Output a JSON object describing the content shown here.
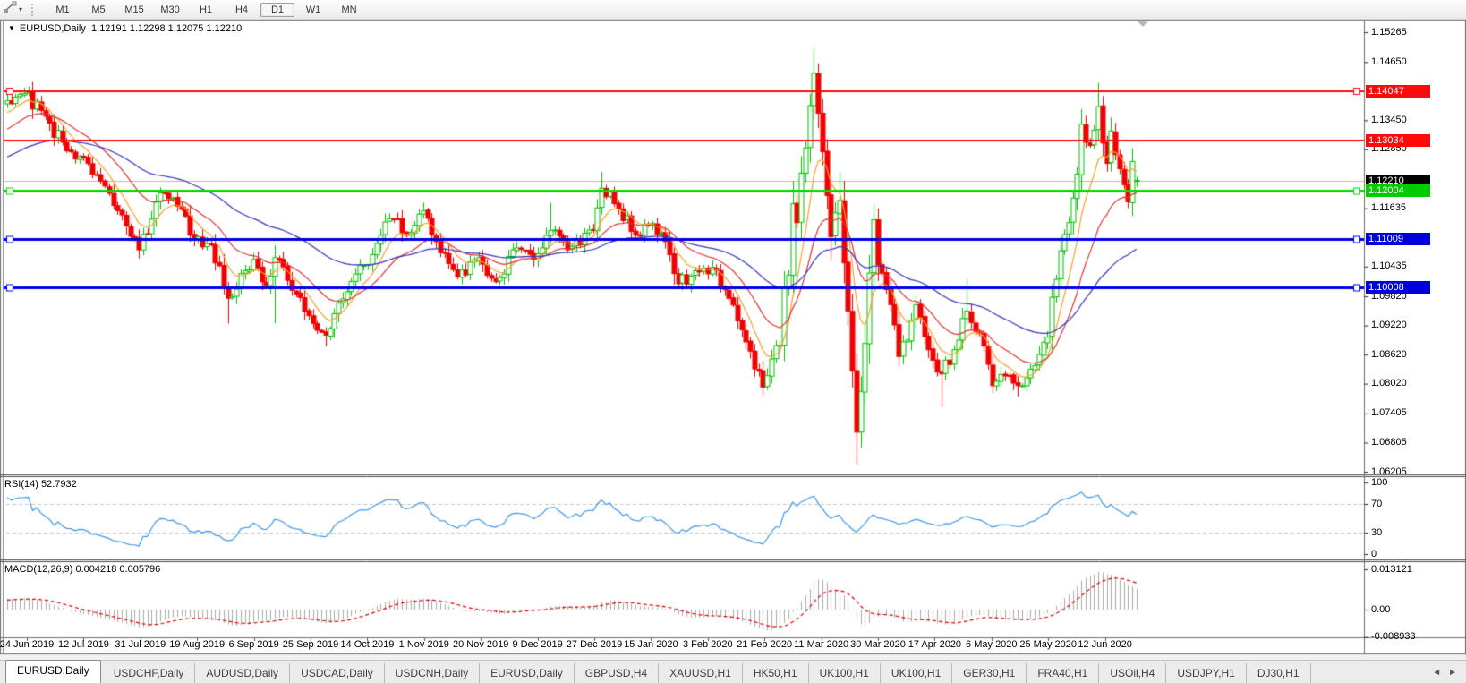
{
  "toolbar": {
    "tool_icon": "line-studies-icon",
    "tool_dropdown_icon": "▾",
    "timeframes": [
      "M1",
      "M5",
      "M15",
      "M30",
      "H1",
      "H4",
      "D1",
      "W1",
      "MN"
    ],
    "active_timeframe": "D1"
  },
  "chart": {
    "menu_icon": "▼",
    "symbol_period": "EURUSD,Daily",
    "ohlc_text": "1.12191 1.12298 1.12075 1.12210"
  },
  "price_scale": {
    "ticks": [
      "1.15265",
      "1.14650",
      "1.13450",
      "1.12850",
      "1.11635",
      "1.10435",
      "1.09820",
      "1.09220",
      "1.08620",
      "1.08020",
      "1.07405",
      "1.06805",
      "1.06205"
    ]
  },
  "levels": [
    {
      "label": "1.14047",
      "value": 1.14047,
      "kind": "resistance-line",
      "color": "#fe0a0a",
      "badge": "#fe0a0a",
      "thickness": 2,
      "handles": true
    },
    {
      "label": "1.13034",
      "value": 1.13034,
      "kind": "resistance-line",
      "color": "#fe0a0a",
      "badge": "#fe0a0a",
      "thickness": 2,
      "handles": false
    },
    {
      "label": "1.12210",
      "value": 1.1221,
      "kind": "current-price-line",
      "color": "#bcbcbc",
      "badge": "#000000",
      "thickness": 1,
      "handles": false
    },
    {
      "label": "1.12004",
      "value": 1.12004,
      "kind": "support-line",
      "color": "#00dc00",
      "badge": "#00cc00",
      "thickness": 3,
      "handles": true
    },
    {
      "label": "1.11009",
      "value": 1.11009,
      "kind": "support-line",
      "color": "#0000e0",
      "badge": "#0000d8",
      "thickness": 3,
      "handles": true
    },
    {
      "label": "1.10008",
      "value": 1.10008,
      "kind": "support-line",
      "color": "#0000e0",
      "badge": "#0000d8",
      "thickness": 3,
      "handles": true
    }
  ],
  "rsi": {
    "label": "RSI(14) 52.7932",
    "period": 14,
    "value": 52.7932,
    "scale": [
      "100",
      "70",
      "30",
      "0"
    ],
    "scale_values": [
      100,
      70,
      30,
      0
    ],
    "upper_band": 70,
    "lower_band": 30,
    "line_color": "#3d97ec"
  },
  "macd": {
    "label": "MACD(12,26,9) 0.004218 0.005796",
    "fast": 12,
    "slow": 26,
    "signal": 9,
    "main_value": 0.004218,
    "signal_value": 0.005796,
    "scale": [
      "0.013121",
      "0.00",
      "-0.008933"
    ],
    "scale_values": [
      0.013121,
      0,
      -0.008933
    ],
    "histogram_color": "#a9a9a9",
    "signal_color": "#e00000"
  },
  "date_axis": [
    "24 Jun 2019",
    "12 Jul 2019",
    "31 Jul 2019",
    "19 Aug 2019",
    "6 Sep 2019",
    "25 Sep 2019",
    "14 Oct 2019",
    "1 Nov 2019",
    "20 Nov 2019",
    "9 Dec 2019",
    "27 Dec 2019",
    "15 Jan 2020",
    "3 Feb 2020",
    "21 Feb 2020",
    "11 Mar 2020",
    "30 Mar 2020",
    "17 Apr 2020",
    "6 May 2020",
    "25 May 2020",
    "12 Jun 2020"
  ],
  "tabs": {
    "items": [
      "EURUSD,Daily",
      "USDCHF,Daily",
      "AUDUSD,Daily",
      "USDCAD,Daily",
      "USDCNH,Daily",
      "EURUSD,Daily",
      "GBPUSD,H4",
      "XAUUSD,H1",
      "HK50,H1",
      "UK100,H1",
      "UK100,H1",
      "GER30,H1",
      "FRA40,H1",
      "USOil,H4",
      "USDJPY,H1",
      "DJ30,H1"
    ],
    "active_index": 0,
    "scroll_left_icon": "◄",
    "scroll_right_icon": "►"
  },
  "chart_data": {
    "type": "candlestick",
    "symbol": "EURUSD",
    "timeframe": "Daily",
    "title": "EURUSD,Daily",
    "x_axis": {
      "start": "24 Jun 2019",
      "end": "23 Jun 2020"
    },
    "y_axis": {
      "min": 1.06205,
      "max": 1.15265
    },
    "last_candle": {
      "open": 1.12191,
      "high": 1.12298,
      "low": 1.12075,
      "close": 1.1221
    },
    "current_price": 1.1221,
    "horizontal_levels": [
      1.14047,
      1.13034,
      1.12004,
      1.11009,
      1.10008
    ],
    "bull_color": "#00c000",
    "bear_color": "#f20000",
    "moving_averages": [
      {
        "name": "fast-ma",
        "period": 8,
        "color": "#f5a02c"
      },
      {
        "name": "medium-ma",
        "period": 20,
        "color": "#e23434"
      },
      {
        "name": "slow-ma",
        "period": 55,
        "color": "#3434c4"
      }
    ],
    "close_path_anchors": [
      [
        -60,
        1.118
      ],
      [
        -45,
        1.116
      ],
      [
        -30,
        1.1235
      ],
      [
        -15,
        1.1285
      ],
      [
        -5,
        1.1345
      ],
      [
        0,
        1.1385
      ],
      [
        4,
        1.14,
        1.1412
      ],
      [
        8,
        1.1365
      ],
      [
        14,
        1.1282
      ],
      [
        18,
        1.1268
      ],
      [
        22,
        1.122
      ],
      [
        27,
        1.115
      ],
      [
        31,
        1.1078,
        null,
        1.106
      ],
      [
        33,
        1.111
      ],
      [
        36,
        1.1195
      ],
      [
        40,
        1.1168
      ],
      [
        44,
        1.1098
      ],
      [
        48,
        1.1088
      ],
      [
        52,
        1.0978,
        null,
        1.0926
      ],
      [
        56,
        1.1035
      ],
      [
        58,
        1.1058
      ],
      [
        61,
        1.1005
      ],
      [
        63,
        1.1062,
        1.1087,
        1.0927
      ],
      [
        66,
        1.1015
      ],
      [
        71,
        1.0942
      ],
      [
        75,
        1.0902,
        null,
        1.0879
      ],
      [
        78,
        1.0968
      ],
      [
        82,
        1.1028
      ],
      [
        86,
        1.1068
      ],
      [
        90,
        1.1142
      ],
      [
        94,
        1.1108
      ],
      [
        98,
        1.1158,
        1.1175
      ],
      [
        102,
        1.1072
      ],
      [
        106,
        1.1022
      ],
      [
        111,
        1.1062
      ],
      [
        115,
        1.1012
      ],
      [
        119,
        1.1078
      ],
      [
        124,
        1.1058
      ],
      [
        128,
        1.1118,
        1.1175
      ],
      [
        132,
        1.1078
      ],
      [
        138,
        1.1118
      ],
      [
        140,
        1.1205,
        1.1239
      ],
      [
        144,
        1.1162
      ],
      [
        148,
        1.1108
      ],
      [
        152,
        1.1132
      ],
      [
        155,
        1.1095
      ],
      [
        158,
        1.1008
      ],
      [
        162,
        1.1035
      ],
      [
        166,
        1.1042
      ],
      [
        170,
        1.0978
      ],
      [
        174,
        1.0888
      ],
      [
        178,
        1.0795,
        null,
        1.0778
      ],
      [
        180,
        1.0853
      ],
      [
        182,
        1.0881
      ],
      [
        183,
        1.0998
      ],
      [
        184,
        1.1026
      ],
      [
        185,
        1.1173,
        1.1214
      ],
      [
        186,
        1.1134
      ],
      [
        187,
        1.1236
      ],
      [
        188,
        1.1288
      ],
      [
        190,
        1.1442,
        1.1495
      ],
      [
        192,
        1.128
      ],
      [
        194,
        1.1105,
        null,
        1.1055
      ],
      [
        196,
        1.118,
        1.1237
      ],
      [
        198,
        1.0952
      ],
      [
        200,
        1.0702,
        null,
        1.0636
      ],
      [
        201,
        1.0786
      ],
      [
        202,
        1.0885
      ],
      [
        203,
        1.103
      ],
      [
        204,
        1.114,
        1.1147
      ],
      [
        205,
        1.1047
      ],
      [
        206,
        1.103
      ],
      [
        208,
        1.0965
      ],
      [
        210,
        1.0858
      ],
      [
        212,
        1.0892
      ],
      [
        214,
        1.0965
      ],
      [
        217,
        1.0872
      ],
      [
        220,
        1.0822,
        null,
        1.0755
      ],
      [
        223,
        1.0872
      ],
      [
        226,
        1.0952,
        1.1018
      ],
      [
        229,
        1.0905
      ],
      [
        232,
        1.0798,
        null,
        1.0782
      ],
      [
        235,
        1.0818
      ],
      [
        238,
        1.0798,
        null,
        1.0775
      ],
      [
        241,
        1.0832
      ],
      [
        245,
        1.0898
      ],
      [
        246,
        1.098
      ],
      [
        247,
        1.1017
      ],
      [
        248,
        1.1076
      ],
      [
        250,
        1.1134
      ],
      [
        252,
        1.1234
      ],
      [
        253,
        1.1337
      ],
      [
        255,
        1.1293
      ],
      [
        257,
        1.1373,
        1.1422
      ],
      [
        258,
        1.1298
      ],
      [
        259,
        1.1256
      ],
      [
        260,
        1.1323
      ],
      [
        262,
        1.1245
      ],
      [
        264,
        1.1177,
        null,
        1.1168
      ],
      [
        265,
        1.126
      ],
      [
        266,
        1.1221
      ]
    ]
  }
}
